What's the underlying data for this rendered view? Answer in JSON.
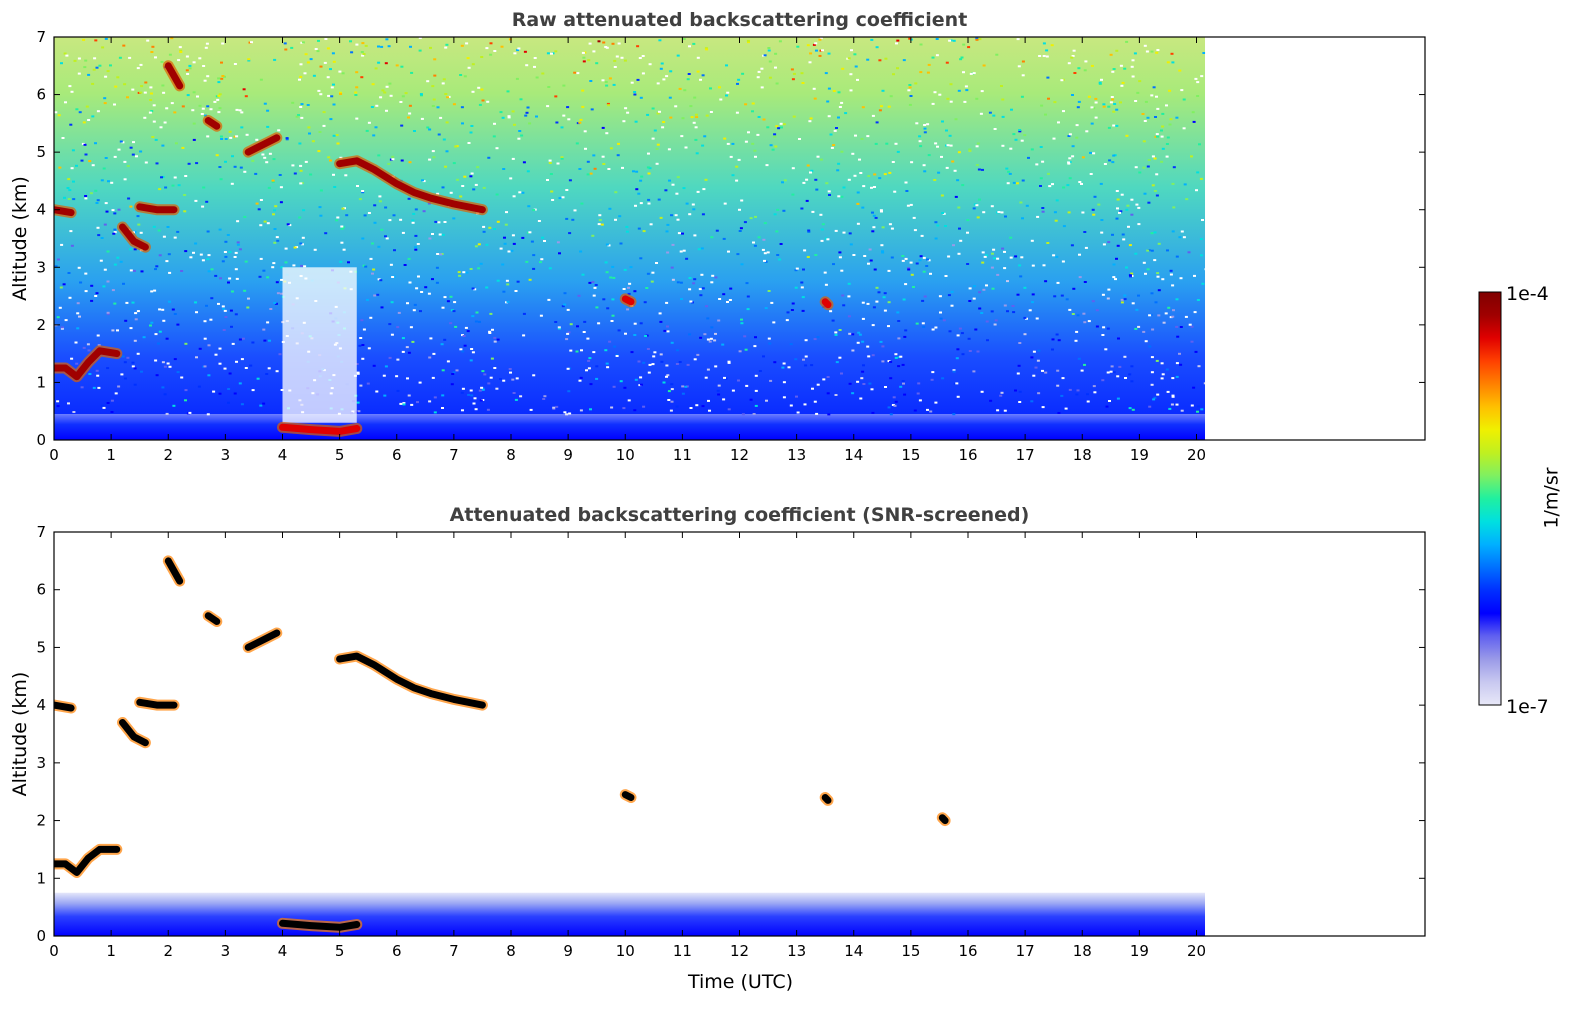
{
  "chart_data": [
    {
      "type": "heatmap",
      "id": "raw",
      "title": "Raw attenuated backscattering coefficient",
      "xlabel": "",
      "ylabel": "Altitude (km)",
      "xlim": [
        0,
        24
      ],
      "ylim": [
        0,
        7
      ],
      "xticks": [
        "0",
        "1",
        "2",
        "3",
        "4",
        "5",
        "6",
        "7",
        "8",
        "9",
        "10",
        "11",
        "12",
        "13",
        "14",
        "15",
        "16",
        "17",
        "18",
        "19",
        "20"
      ],
      "yticks": [
        "0",
        "1",
        "2",
        "3",
        "4",
        "5",
        "6",
        "7"
      ],
      "data_end_time": 20.15,
      "features": [
        {
          "name": "surface-layer",
          "kind": "band",
          "x": [
            0,
            20.15
          ],
          "y": [
            0,
            0.45
          ],
          "level": 0.12
        },
        {
          "name": "high-noise-region",
          "kind": "gradient",
          "x": [
            0,
            20.15
          ],
          "y": [
            0.45,
            7
          ],
          "level_bottom": 0.05,
          "level_top": 0.5
        },
        {
          "name": "clear-gap",
          "kind": "gap",
          "x": [
            4.0,
            5.3
          ],
          "y": [
            0.3,
            3.0
          ]
        },
        {
          "name": "low-cloud",
          "kind": "cloud",
          "points": [
            [
              0,
              1.25
            ],
            [
              0.2,
              1.25
            ],
            [
              0.4,
              1.1
            ],
            [
              0.6,
              1.35
            ],
            [
              0.8,
              1.55
            ],
            [
              1.1,
              1.5
            ]
          ],
          "level": 0.95
        },
        {
          "name": "cloud-4km-early",
          "kind": "cloud",
          "points": [
            [
              0,
              4.0
            ],
            [
              0.3,
              3.95
            ]
          ],
          "level": 0.95
        },
        {
          "name": "cloud-3.5km",
          "kind": "cloud",
          "points": [
            [
              1.2,
              3.7
            ],
            [
              1.4,
              3.45
            ],
            [
              1.6,
              3.35
            ]
          ],
          "level": 0.95
        },
        {
          "name": "cloud-4km-b",
          "kind": "cloud",
          "points": [
            [
              1.5,
              4.05
            ],
            [
              1.8,
              4.0
            ],
            [
              2.1,
              4.0
            ]
          ],
          "level": 0.95
        },
        {
          "name": "cloud-6.3km",
          "kind": "cloud",
          "points": [
            [
              2.0,
              6.5
            ],
            [
              2.2,
              6.15
            ]
          ],
          "level": 0.95
        },
        {
          "name": "cloud-5.5km",
          "kind": "cloud",
          "points": [
            [
              2.7,
              5.55
            ],
            [
              2.85,
              5.45
            ]
          ],
          "level": 0.95
        },
        {
          "name": "cloud-5.1km",
          "kind": "cloud",
          "points": [
            [
              3.4,
              5.0
            ],
            [
              3.7,
              5.15
            ],
            [
              3.9,
              5.25
            ]
          ],
          "level": 0.95
        },
        {
          "name": "aerosol-layer-4-5h",
          "kind": "cloud",
          "points": [
            [
              4.0,
              0.22
            ],
            [
              4.5,
              0.18
            ],
            [
              5.0,
              0.15
            ],
            [
              5.3,
              0.2
            ]
          ],
          "level": 0.9
        },
        {
          "name": "cirrus-main",
          "kind": "cloud",
          "points": [
            [
              5.0,
              4.8
            ],
            [
              5.3,
              4.85
            ],
            [
              5.6,
              4.7
            ],
            [
              6.0,
              4.45
            ],
            [
              6.3,
              4.3
            ],
            [
              6.6,
              4.2
            ],
            [
              7.0,
              4.1
            ],
            [
              7.5,
              4.0
            ]
          ],
          "level": 0.95
        },
        {
          "name": "small-feature-10h",
          "kind": "cloud",
          "points": [
            [
              10.0,
              2.45
            ],
            [
              10.1,
              2.4
            ]
          ],
          "level": 0.9
        },
        {
          "name": "small-feature-13.5h",
          "kind": "cloud",
          "points": [
            [
              13.5,
              2.4
            ],
            [
              13.55,
              2.35
            ]
          ],
          "level": 0.9
        }
      ],
      "colorbar": {
        "max_label": "1e-4",
        "min_label": "1e-7",
        "label": "1/m/sr"
      }
    },
    {
      "type": "heatmap",
      "id": "screened",
      "title": "Attenuated backscattering coefficient (SNR-screened)",
      "xlabel": "Time (UTC)",
      "ylabel": "Altitude (km)",
      "xlim": [
        0,
        24
      ],
      "ylim": [
        0,
        7
      ],
      "xticks": [
        "0",
        "1",
        "2",
        "3",
        "4",
        "5",
        "6",
        "7",
        "8",
        "9",
        "10",
        "11",
        "12",
        "13",
        "14",
        "15",
        "16",
        "17",
        "18",
        "19",
        "20"
      ],
      "yticks": [
        "0",
        "1",
        "2",
        "3",
        "4",
        "5",
        "6",
        "7"
      ],
      "data_end_time": 20.15,
      "features": [
        {
          "name": "boundary-layer",
          "kind": "band",
          "x": [
            0,
            20.15
          ],
          "y": [
            0,
            0.75
          ],
          "level": 0.1
        },
        {
          "name": "low-cloud",
          "kind": "cloud",
          "points": [
            [
              0,
              1.25
            ],
            [
              0.2,
              1.25
            ],
            [
              0.4,
              1.1
            ],
            [
              0.6,
              1.35
            ],
            [
              0.8,
              1.5
            ],
            [
              1.1,
              1.5
            ]
          ],
          "level": 1.0
        },
        {
          "name": "cloud-4km-early",
          "kind": "cloud",
          "points": [
            [
              0,
              4.0
            ],
            [
              0.3,
              3.95
            ]
          ],
          "level": 1.0
        },
        {
          "name": "cloud-3.5km",
          "kind": "cloud",
          "points": [
            [
              1.2,
              3.7
            ],
            [
              1.4,
              3.45
            ],
            [
              1.6,
              3.35
            ]
          ],
          "level": 1.0
        },
        {
          "name": "cloud-4km-b",
          "kind": "cloud",
          "points": [
            [
              1.5,
              4.05
            ],
            [
              1.8,
              4.0
            ],
            [
              2.1,
              4.0
            ]
          ],
          "level": 1.0
        },
        {
          "name": "cloud-6.3km",
          "kind": "cloud",
          "points": [
            [
              2.0,
              6.5
            ],
            [
              2.2,
              6.15
            ]
          ],
          "level": 1.0
        },
        {
          "name": "cloud-5.5km",
          "kind": "cloud",
          "points": [
            [
              2.7,
              5.55
            ],
            [
              2.85,
              5.45
            ]
          ],
          "level": 1.0
        },
        {
          "name": "cloud-5.1km",
          "kind": "cloud",
          "points": [
            [
              3.4,
              5.0
            ],
            [
              3.7,
              5.15
            ],
            [
              3.9,
              5.25
            ]
          ],
          "level": 1.0
        },
        {
          "name": "aerosol-layer-4-5h",
          "kind": "cloud",
          "points": [
            [
              4.0,
              0.22
            ],
            [
              4.5,
              0.18
            ],
            [
              5.0,
              0.15
            ],
            [
              5.3,
              0.2
            ]
          ],
          "level": 1.0
        },
        {
          "name": "cirrus-main",
          "kind": "cloud",
          "points": [
            [
              5.0,
              4.8
            ],
            [
              5.3,
              4.85
            ],
            [
              5.6,
              4.7
            ],
            [
              6.0,
              4.45
            ],
            [
              6.3,
              4.3
            ],
            [
              6.6,
              4.2
            ],
            [
              7.0,
              4.1
            ],
            [
              7.5,
              4.0
            ]
          ],
          "level": 1.0
        },
        {
          "name": "small-feature-10h",
          "kind": "cloud",
          "points": [
            [
              10.0,
              2.45
            ],
            [
              10.1,
              2.4
            ]
          ],
          "level": 1.0
        },
        {
          "name": "small-feature-13.5h",
          "kind": "cloud",
          "points": [
            [
              13.5,
              2.4
            ],
            [
              13.55,
              2.35
            ]
          ],
          "level": 1.0
        },
        {
          "name": "small-feature-15.6h",
          "kind": "cloud",
          "points": [
            [
              15.55,
              2.05
            ],
            [
              15.6,
              2.0
            ]
          ],
          "level": 1.0
        }
      ]
    }
  ],
  "colorbar": {
    "max_label": "1e-4",
    "min_label": "1e-7",
    "label": "1/m/sr",
    "colors": [
      "#e8e8f8",
      "#c8c8f0",
      "#9a9ae8",
      "#6060f0",
      "#0000ff",
      "#0030ff",
      "#0070ff",
      "#00b0ff",
      "#00e0e0",
      "#20f0a0",
      "#80f060",
      "#c0f020",
      "#f0f000",
      "#ffc000",
      "#ff8000",
      "#ff4000",
      "#e00000",
      "#a00000",
      "#800000"
    ]
  }
}
